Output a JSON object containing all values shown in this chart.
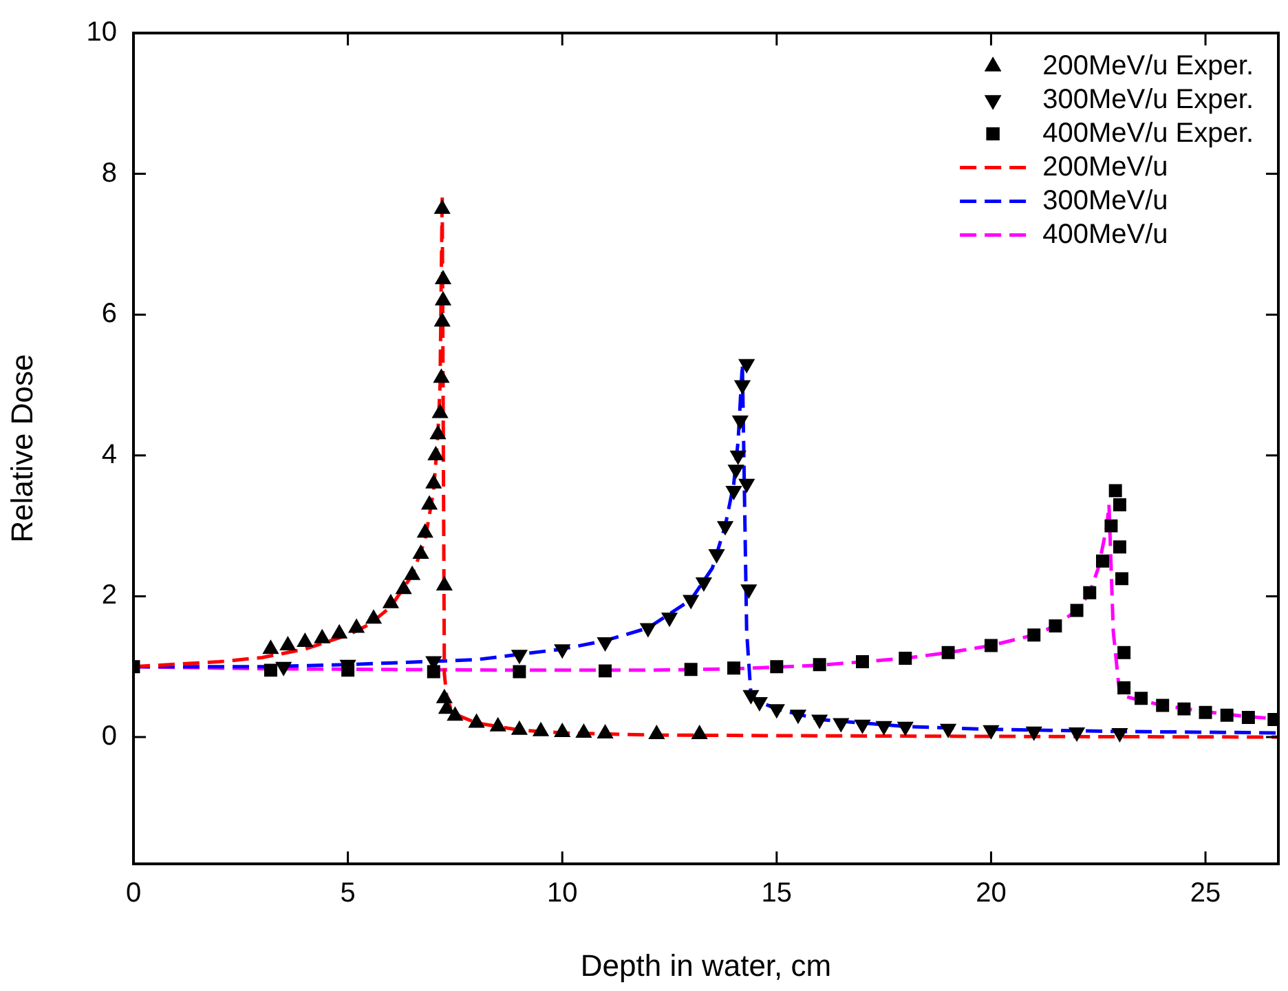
{
  "chart_data": {
    "type": "scatter",
    "xlabel": "Depth in water, cm",
    "ylabel": "Relative Dose",
    "xlim": [
      0,
      26.7
    ],
    "ylim": [
      -1.8,
      10
    ],
    "xticks": [
      0,
      5,
      10,
      15,
      20,
      25
    ],
    "yticks": [
      0,
      2,
      4,
      6,
      8,
      10
    ],
    "grid": false,
    "legend": "top right",
    "series": [
      {
        "name": "200MeV/u Exper.",
        "marker": "triangle",
        "color": "#000000",
        "x": [
          3.2,
          3.6,
          4,
          4.4,
          4.8,
          5.2,
          5.6,
          6,
          6.3,
          6.5,
          6.7,
          6.8,
          6.9,
          7,
          7.05,
          7.1,
          7.15,
          7.18,
          7.2,
          7.22,
          7.22,
          7.2,
          7.25,
          7.25,
          7.3,
          7.5,
          8,
          8.5,
          9,
          9.5,
          10,
          10.5,
          11,
          12.2,
          13.2
        ],
        "values": [
          1.25,
          1.3,
          1.35,
          1.4,
          1.47,
          1.55,
          1.68,
          1.9,
          2.1,
          2.3,
          2.6,
          2.9,
          3.3,
          3.6,
          4.0,
          4.3,
          4.6,
          5.1,
          5.9,
          6.2,
          6.5,
          7.5,
          2.15,
          0.55,
          0.4,
          0.3,
          0.2,
          0.15,
          0.1,
          0.08,
          0.07,
          0.06,
          0.05,
          0.04,
          0.04
        ]
      },
      {
        "name": "300MeV/u Exper.",
        "marker": "triangle_down",
        "color": "#000000",
        "x": [
          3.5,
          5,
          7,
          9,
          10,
          11,
          12,
          12.5,
          13,
          13.3,
          13.6,
          13.8,
          14,
          14.05,
          14.1,
          14.15,
          14.2,
          14.3,
          14.3,
          14.35,
          14.4,
          14.6,
          15,
          15.5,
          16,
          16.5,
          17,
          17.5,
          18,
          19,
          20,
          21,
          22,
          23
        ],
        "values": [
          1.0,
          1.03,
          1.08,
          1.17,
          1.25,
          1.35,
          1.55,
          1.7,
          1.95,
          2.2,
          2.6,
          3.0,
          3.5,
          3.8,
          4.0,
          4.5,
          5.0,
          5.3,
          3.6,
          2.1,
          0.6,
          0.5,
          0.4,
          0.32,
          0.25,
          0.2,
          0.18,
          0.16,
          0.15,
          0.12,
          0.1,
          0.08,
          0.07,
          0.06
        ]
      },
      {
        "name": "400MeV/u Exper.",
        "marker": "square",
        "color": "#000000",
        "x": [
          0,
          3.2,
          5,
          7,
          9,
          11,
          13,
          14,
          15,
          16,
          17,
          18,
          19,
          20,
          21,
          21.5,
          22,
          22.3,
          22.6,
          22.8,
          22.9,
          23,
          23,
          23.05,
          23.1,
          23.1,
          23.5,
          24,
          24.5,
          25,
          25.5,
          26,
          26.6
        ],
        "values": [
          1.0,
          0.95,
          0.95,
          0.93,
          0.93,
          0.94,
          0.96,
          0.98,
          1.0,
          1.03,
          1.07,
          1.12,
          1.2,
          1.3,
          1.45,
          1.58,
          1.8,
          2.05,
          2.5,
          3.0,
          3.5,
          3.3,
          2.7,
          2.25,
          1.2,
          0.7,
          0.55,
          0.45,
          0.4,
          0.35,
          0.31,
          0.28,
          0.25
        ]
      },
      {
        "name": "200MeV/u",
        "type": "line",
        "marker": "none",
        "line_style": "dashed",
        "color": "#ff0000",
        "x": [
          0,
          2,
          3,
          4,
          5,
          5.5,
          6,
          6.5,
          6.8,
          7,
          7.1,
          7.15,
          7.2,
          7.25,
          7.3,
          7.4,
          7.6,
          8,
          9,
          10,
          12,
          15,
          20,
          26.7
        ],
        "values": [
          1.0,
          1.07,
          1.13,
          1.25,
          1.45,
          1.6,
          1.85,
          2.3,
          2.8,
          3.5,
          4.3,
          5.0,
          7.7,
          0.9,
          0.6,
          0.4,
          0.3,
          0.2,
          0.1,
          0.06,
          0.03,
          0.02,
          0.01,
          0.0
        ]
      },
      {
        "name": "300MeV/u",
        "type": "line",
        "marker": "none",
        "line_style": "dashed",
        "color": "#0000ff",
        "x": [
          0,
          3,
          5,
          8,
          10,
          11,
          12,
          13,
          13.5,
          13.8,
          14,
          14.1,
          14.2,
          14.3,
          14.4,
          14.6,
          15,
          16,
          17,
          18,
          20,
          23,
          26.7
        ],
        "values": [
          1.0,
          1.0,
          1.03,
          1.1,
          1.25,
          1.37,
          1.55,
          1.95,
          2.4,
          3.0,
          3.6,
          4.2,
          5.3,
          1.5,
          0.6,
          0.5,
          0.4,
          0.25,
          0.2,
          0.15,
          0.11,
          0.08,
          0.06
        ]
      },
      {
        "name": "400MeV/u",
        "type": "line",
        "marker": "none",
        "line_style": "dashed",
        "color": "#ff00ff",
        "x": [
          0,
          3,
          6,
          9,
          12,
          14,
          16,
          18,
          19,
          20,
          21,
          21.5,
          22,
          22.3,
          22.5,
          22.7,
          22.75,
          22.85,
          23,
          23.3,
          24,
          25,
          26,
          26.7
        ],
        "values": [
          1.0,
          0.97,
          0.96,
          0.95,
          0.95,
          0.97,
          1.02,
          1.12,
          1.2,
          1.3,
          1.45,
          1.58,
          1.8,
          2.05,
          2.4,
          3.0,
          3.3,
          1.5,
          0.6,
          0.55,
          0.45,
          0.36,
          0.29,
          0.26
        ]
      }
    ]
  }
}
